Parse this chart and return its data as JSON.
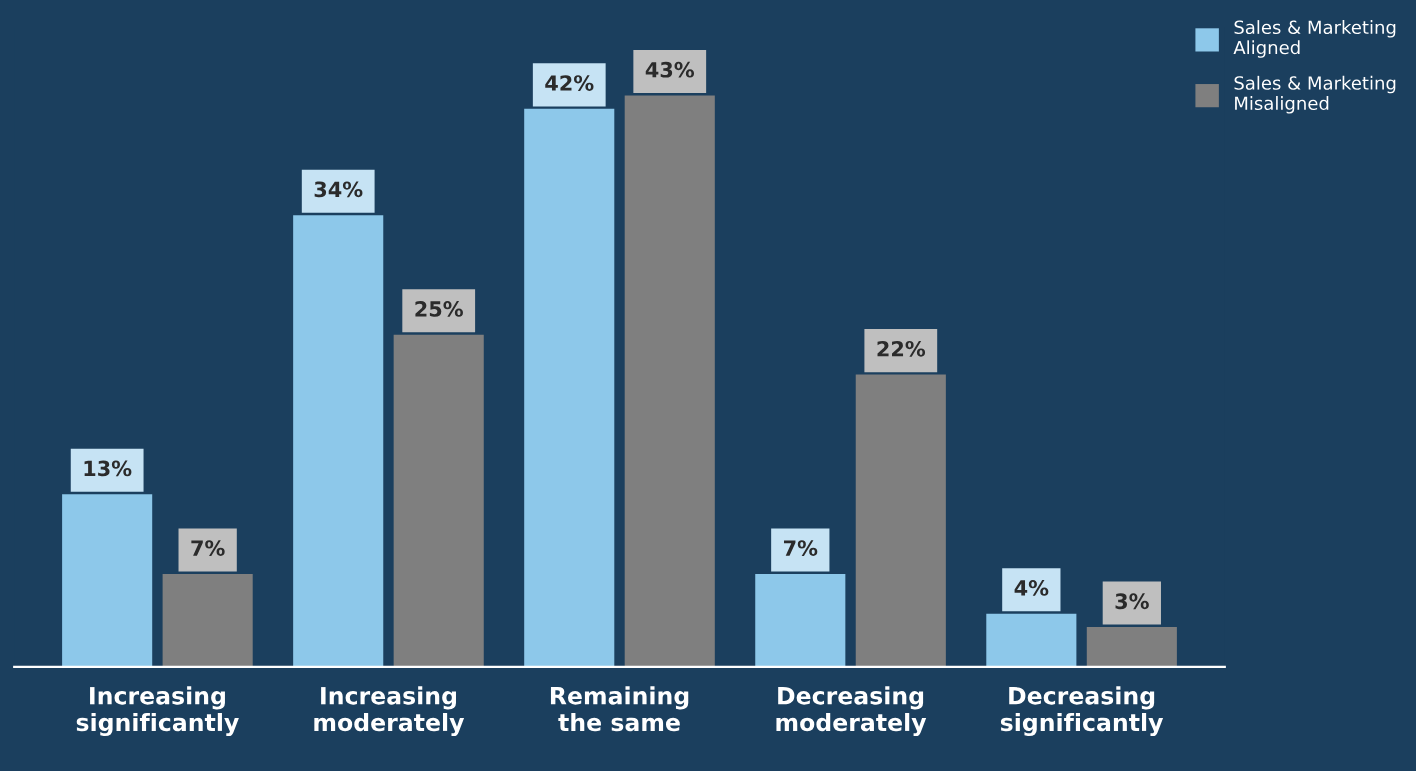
{
  "chart_data": {
    "type": "bar",
    "categories": [
      "Increasing\nsignificantly",
      "Increasing\nmoderately",
      "Remaining\nthe same",
      "Decreasing\nmoderately",
      "Decreasing\nsignificantly"
    ],
    "series": [
      {
        "name": "Sales & Marketing\nAligned",
        "color": "#8dc8ea",
        "values": [
          13,
          34,
          42,
          7,
          4
        ],
        "value_labels": [
          "13%",
          "34%",
          "42%",
          "7%",
          "4%"
        ]
      },
      {
        "name": "Sales & Marketing\nMisaligned",
        "color": "#7f7f7f",
        "values": [
          7,
          25,
          43,
          22,
          3
        ],
        "value_labels": [
          "7%",
          "25%",
          "43%",
          "22%",
          "3%"
        ]
      }
    ],
    "legend": "top right",
    "grid": false
  }
}
